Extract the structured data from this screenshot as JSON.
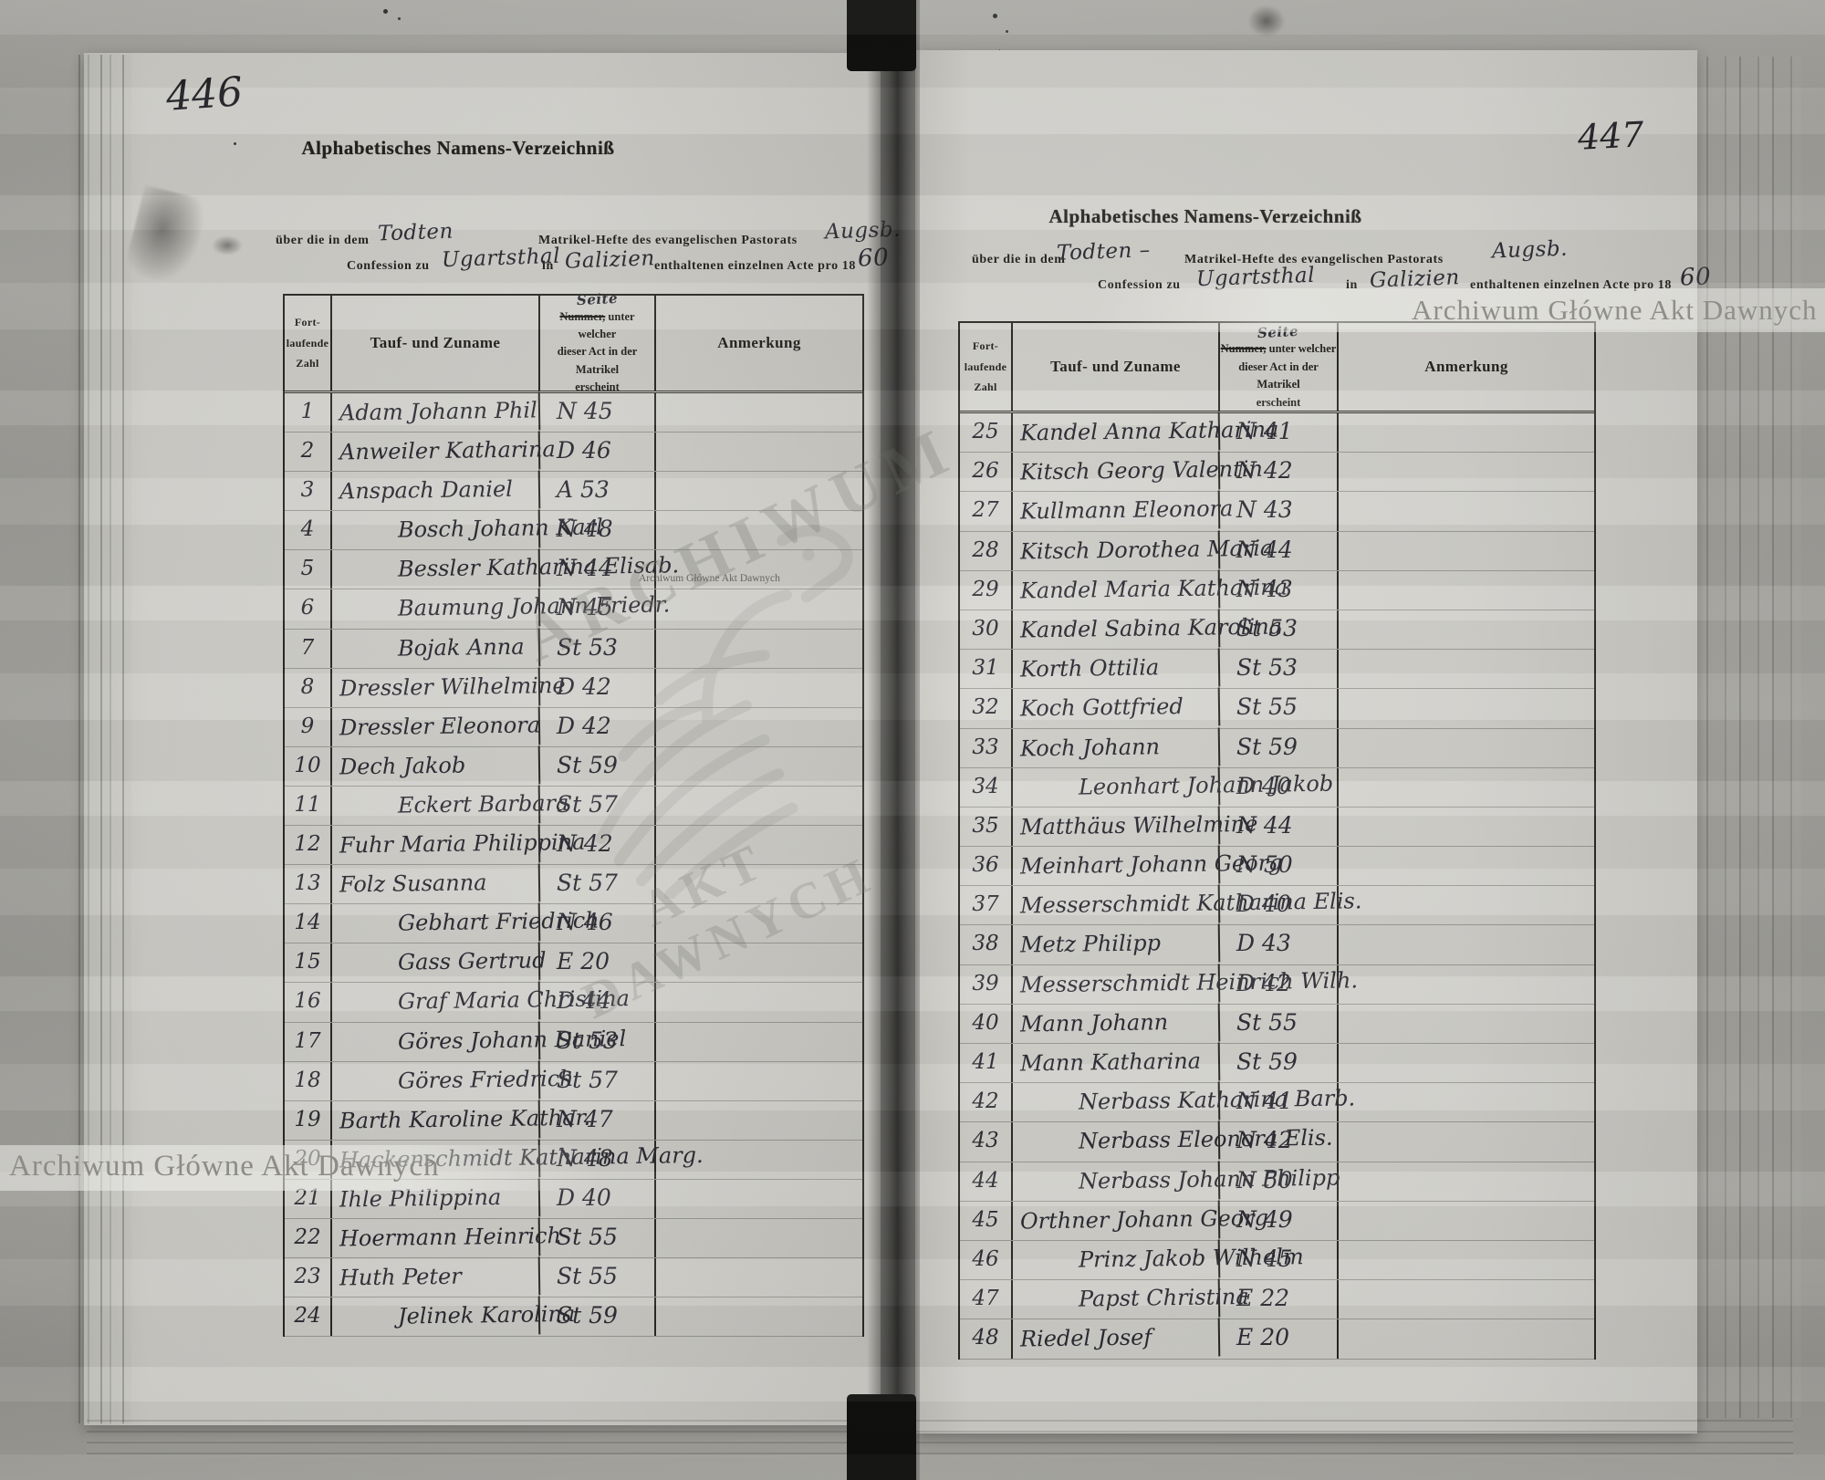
{
  "scan": {
    "watermark_top_right": "Archiwum Główne Akt Dawnych",
    "watermark_bottom_left": "Archiwum Główne Akt Dawnych",
    "watermark_center_small": "Archiwum Główne Akt Dawnych",
    "watermark_diag_line1": "ARCHIWUM",
    "watermark_diag_line2": "AKT DAWNYCH"
  },
  "pages": [
    {
      "folio": "446",
      "title": "Alphabetisches Namens-Verzeichniß",
      "line1_pre": "über die in dem",
      "line1_blank": "Todten",
      "line1_mid": "Matrikel-Hefte des evangelischen Pastorats",
      "line1_blank2": "Augsb.",
      "line2_pre": "Confession zu",
      "line2_place": "Ugartsthal",
      "line2_in": "in",
      "line2_region": "Galizien",
      "line2_post": "enthaltenen einzelnen Acte pro 18",
      "line2_year": "60",
      "table": {
        "col1_lines": [
          "Fort-",
          "laufende",
          "Zahl"
        ],
        "col2": "Tauf- und Zuname",
        "col3_hw": "Seite",
        "col3_struck": "Nummer,",
        "col3_line1rest": "unter welcher",
        "col3_line2": "dieser Act in der Matrikel",
        "col3_line3": "erscheint",
        "col4": "Anmerkung",
        "rows": [
          {
            "no": "1",
            "name": "Adam Johann Phil",
            "ref": "N 45",
            "indent": false
          },
          {
            "no": "2",
            "name": "Anweiler Katharina",
            "ref": "D 46",
            "indent": false
          },
          {
            "no": "3",
            "name": "Anspach Daniel",
            "ref": "A 53",
            "indent": false
          },
          {
            "no": "4",
            "name": "Bosch Johann Karl",
            "ref": "N 48",
            "indent": true
          },
          {
            "no": "5",
            "name": "Bessler Katharina Elisab.",
            "ref": "N 44",
            "indent": true
          },
          {
            "no": "6",
            "name": "Baumung Johann Friedr.",
            "ref": "N 45",
            "indent": true
          },
          {
            "no": "7",
            "name": "Bojak Anna",
            "ref": "St 53",
            "indent": true
          },
          {
            "no": "8",
            "name": "Dressler Wilhelmine",
            "ref": "D 42",
            "indent": false
          },
          {
            "no": "9",
            "name": "Dressler Eleonora",
            "ref": "D 42",
            "indent": false
          },
          {
            "no": "10",
            "name": "Dech Jakob",
            "ref": "St 59",
            "indent": false
          },
          {
            "no": "11",
            "name": "Eckert Barbara",
            "ref": "St 57",
            "indent": true
          },
          {
            "no": "12",
            "name": "Fuhr Maria Philippina",
            "ref": "N 42",
            "indent": false
          },
          {
            "no": "13",
            "name": "Folz Susanna",
            "ref": "St 57",
            "indent": false
          },
          {
            "no": "14",
            "name": "Gebhart Friedrich",
            "ref": "N 46",
            "indent": true
          },
          {
            "no": "15",
            "name": "Gass Gertrud",
            "ref": "E 20",
            "indent": true
          },
          {
            "no": "16",
            "name": "Graf Maria Christina",
            "ref": "D 44",
            "indent": true
          },
          {
            "no": "17",
            "name": "Göres Johann Daniel",
            "ref": "St 53",
            "indent": true
          },
          {
            "no": "18",
            "name": "Göres Friedrich",
            "ref": "St 57",
            "indent": true
          },
          {
            "no": "19",
            "name": "Barth Karoline Kathar.",
            "ref": "N 47",
            "indent": false
          },
          {
            "no": "20",
            "name": "Hackenschmidt Katharina Marg.",
            "ref": "N 48",
            "indent": false
          },
          {
            "no": "21",
            "name": "Ihle Philippina",
            "ref": "D 40",
            "indent": false
          },
          {
            "no": "22",
            "name": "Hoermann Heinrich",
            "ref": "St 55",
            "indent": false
          },
          {
            "no": "23",
            "name": "Huth Peter",
            "ref": "St 55",
            "indent": false
          },
          {
            "no": "24",
            "name": "Jelinek Karolina",
            "ref": "St 59",
            "indent": true
          }
        ]
      }
    },
    {
      "folio": "447",
      "title": "Alphabetisches Namens-Verzeichniß",
      "line1_pre": "über die in dem",
      "line1_blank": "Todten –",
      "line1_mid": "Matrikel-Hefte des evangelischen Pastorats",
      "line1_blank2": "Augsb.",
      "line2_pre": "Confession zu",
      "line2_place": "Ugartsthal",
      "line2_in": "in",
      "line2_region": "Galizien",
      "line2_post": "enthaltenen einzelnen Acte pro 18",
      "line2_year": "60",
      "table": {
        "col1_lines": [
          "Fort-",
          "laufende",
          "Zahl"
        ],
        "col2": "Tauf- und Zuname",
        "col3_hw": "Seite",
        "col3_struck": "Nummer,",
        "col3_line1rest": "unter welcher",
        "col3_line2": "dieser Act in der Matrikel",
        "col3_line3": "erscheint",
        "col4": "Anmerkung",
        "rows": [
          {
            "no": "25",
            "name": "Kandel Anna Katharina",
            "ref": "N 41",
            "indent": false
          },
          {
            "no": "26",
            "name": "Kitsch Georg Valentin",
            "ref": "N 42",
            "indent": false
          },
          {
            "no": "27",
            "name": "Kullmann Eleonora",
            "ref": "N 43",
            "indent": false
          },
          {
            "no": "28",
            "name": "Kitsch Dorothea Maria",
            "ref": "N 44",
            "indent": false
          },
          {
            "no": "29",
            "name": "Kandel Maria Katharina",
            "ref": "N 43",
            "indent": false
          },
          {
            "no": "30",
            "name": "Kandel Sabina Karolina",
            "ref": "St 53",
            "indent": false
          },
          {
            "no": "31",
            "name": "Korth Ottilia",
            "ref": "St 53",
            "indent": false
          },
          {
            "no": "32",
            "name": "Koch Gottfried",
            "ref": "St 55",
            "indent": false
          },
          {
            "no": "33",
            "name": "Koch Johann",
            "ref": "St 59",
            "indent": false
          },
          {
            "no": "34",
            "name": "Leonhart Johann Jakob",
            "ref": "D 40",
            "indent": true
          },
          {
            "no": "35",
            "name": "Matthäus Wilhelmine",
            "ref": "N 44",
            "indent": false
          },
          {
            "no": "36",
            "name": "Meinhart Johann Georg",
            "ref": "N 50",
            "indent": false
          },
          {
            "no": "37",
            "name": "Messerschmidt Katharina Elis.",
            "ref": "D 40",
            "indent": false
          },
          {
            "no": "38",
            "name": "Metz Philipp",
            "ref": "D 43",
            "indent": false
          },
          {
            "no": "39",
            "name": "Messerschmidt Heinrich Wilh.",
            "ref": "D 42",
            "indent": false
          },
          {
            "no": "40",
            "name": "Mann Johann",
            "ref": "St 55",
            "indent": false
          },
          {
            "no": "41",
            "name": "Mann Katharina",
            "ref": "St 59",
            "indent": false
          },
          {
            "no": "42",
            "name": "Nerbass Katharina Barb.",
            "ref": "N 41",
            "indent": true
          },
          {
            "no": "43",
            "name": "Nerbass Eleonora Elis.",
            "ref": "N 42",
            "indent": true
          },
          {
            "no": "44",
            "name": "Nerbass Johann Philipp",
            "ref": "N 50",
            "indent": true
          },
          {
            "no": "45",
            "name": "Orthner Johann Georg",
            "ref": "N 49",
            "indent": false
          },
          {
            "no": "46",
            "name": "Prinz Jakob Wilhelm",
            "ref": "N 45",
            "indent": true
          },
          {
            "no": "47",
            "name": "Papst Christina",
            "ref": "E 22",
            "indent": true
          },
          {
            "no": "48",
            "name": "Riedel Josef",
            "ref": "E 20",
            "indent": false
          }
        ]
      }
    }
  ]
}
